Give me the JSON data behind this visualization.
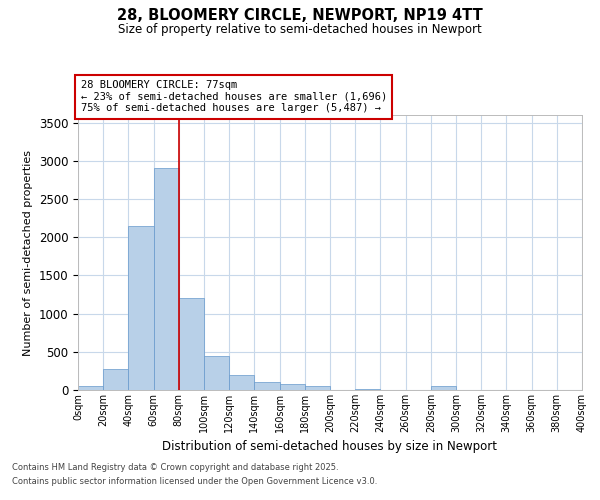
{
  "title1": "28, BLOOMERY CIRCLE, NEWPORT, NP19 4TT",
  "title2": "Size of property relative to semi-detached houses in Newport",
  "xlabel": "Distribution of semi-detached houses by size in Newport",
  "ylabel": "Number of semi-detached properties",
  "annotation_line1": "28 BLOOMERY CIRCLE: 77sqm",
  "annotation_line2": "← 23% of semi-detached houses are smaller (1,696)",
  "annotation_line3": "75% of semi-detached houses are larger (5,487) →",
  "bar_color": "#b8d0e8",
  "bar_edge_color": "#6699cc",
  "vline_color": "#cc0000",
  "annotation_box_edgecolor": "#cc0000",
  "background_color": "#ffffff",
  "grid_color": "#c8d8ea",
  "bin_edges": [
    0,
    20,
    40,
    60,
    80,
    100,
    120,
    140,
    160,
    180,
    200,
    220,
    240,
    260,
    280,
    300,
    320,
    340,
    360,
    380,
    400
  ],
  "bar_heights": [
    50,
    270,
    2150,
    2900,
    1200,
    450,
    200,
    110,
    80,
    50,
    0,
    10,
    0,
    0,
    50,
    0,
    0,
    0,
    5,
    0
  ],
  "vline_x": 80,
  "ylim": [
    0,
    3600
  ],
  "yticks": [
    0,
    500,
    1000,
    1500,
    2000,
    2500,
    3000,
    3500
  ],
  "footer_line1": "Contains HM Land Registry data © Crown copyright and database right 2025.",
  "footer_line2": "Contains public sector information licensed under the Open Government Licence v3.0."
}
